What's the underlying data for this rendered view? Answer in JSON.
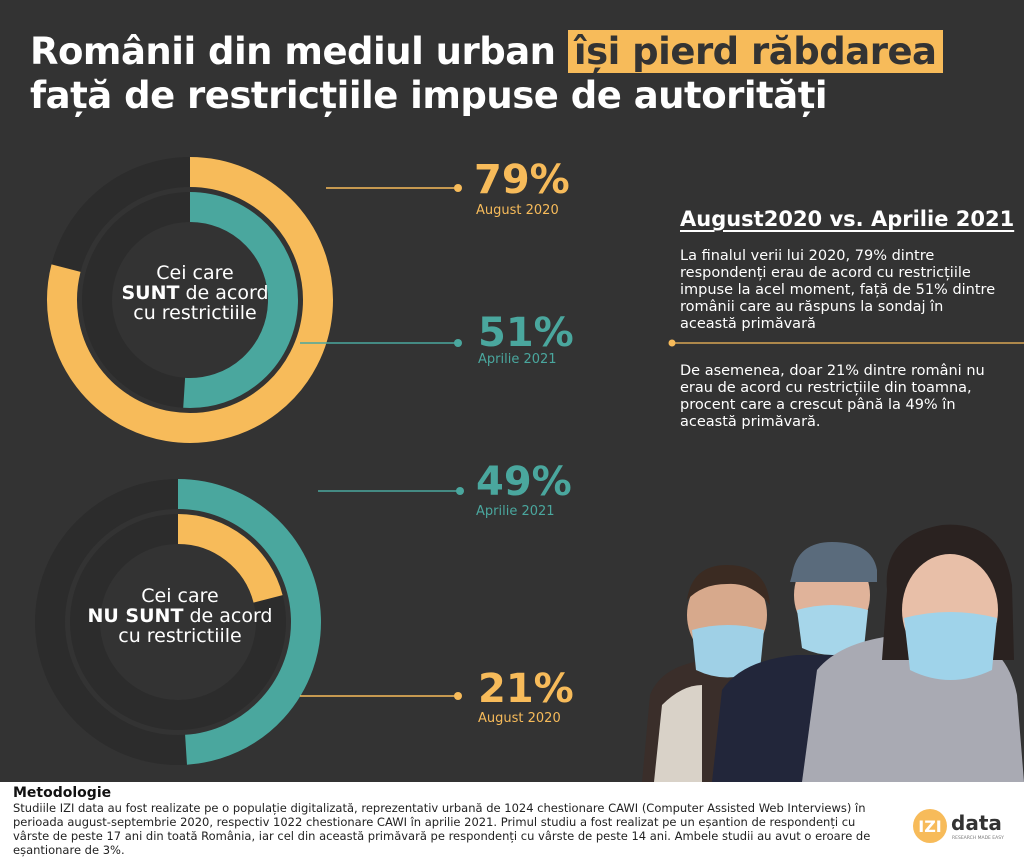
{
  "title": {
    "part1": "Românii din mediul urban ",
    "highlight": "își pierd răbdarea",
    "part2": " față de restricțiile impuse de autorități"
  },
  "colors": {
    "background": "#333333",
    "accent_yellow": "#f7bb5a",
    "accent_teal": "#4aa79e",
    "track": "#2c2c2c"
  },
  "chart_data": [
    {
      "type": "donut",
      "center_label": {
        "line1": "Cei care",
        "bold": "SUNT",
        "line2_rest": " de acord",
        "line3": "cu restrictiile"
      },
      "series": [
        {
          "name": "August 2020",
          "value": 79,
          "display": "79%",
          "color": "#f7bb5a"
        },
        {
          "name": "Aprilie 2021",
          "value": 51,
          "display": "51%",
          "color": "#4aa79e"
        }
      ]
    },
    {
      "type": "donut",
      "center_label": {
        "line1": "Cei care",
        "bold": "NU SUNT",
        "line2_rest": " de acord",
        "line3": "cu restrictiile"
      },
      "series": [
        {
          "name": "Aprilie 2021",
          "value": 49,
          "display": "49%",
          "color": "#4aa79e"
        },
        {
          "name": "August 2020",
          "value": 21,
          "display": "21%",
          "color": "#f7bb5a"
        }
      ]
    }
  ],
  "comparison": {
    "title": "August2020 vs. Aprilie 2021",
    "paragraph1": "La finalul verii lui 2020, 79% dintre respondenți erau de acord cu restricțiile impuse la acel moment, față de 51% dintre românii care au răspuns la sondaj în această primăvară",
    "paragraph2": "De asemenea, doar 21% dintre români nu erau de acord cu restricțiile din toamna, procent care a crescut până la 49% în această primăvară."
  },
  "footer": {
    "heading": "Metodologie",
    "text": "Studiile IZI data au fost realizate pe o populație digitalizată, reprezentativ urbană de 1024 chestionare CAWI (Computer Assisted Web Interviews) în perioada august-septembrie 2020, respectiv 1022 chestionare CAWI în aprilie 2021. Primul studiu a fost realizat pe un eșantion de respondenți cu vârste de peste 17 ani din toată România, iar cel din această primăvară pe respondenți cu vârste de peste 14 ani. Ambele studii au avut o eroare de eșantionare de 3%."
  },
  "logo": {
    "izi": "IZI",
    "data": "data",
    "tagline": "RESEARCH MADE EASY"
  },
  "image": {
    "icon": "people-wearing-masks-photo"
  }
}
